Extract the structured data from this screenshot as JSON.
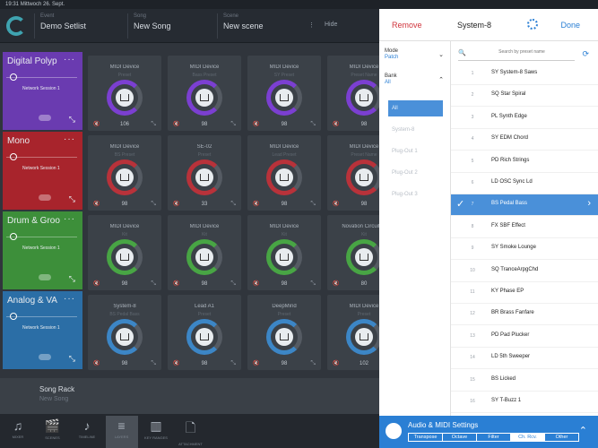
{
  "status": {
    "time": "19:31",
    "date": "Mittwoch 26. Sept."
  },
  "topbar": {
    "fields": [
      {
        "label": "Event",
        "value": "Demo Setlist"
      },
      {
        "label": "Song",
        "value": "New Song"
      },
      {
        "label": "Scene",
        "value": "New scene"
      }
    ],
    "more": "⋮",
    "hide": "Hide"
  },
  "parts": [
    {
      "name": "Digital Polyp",
      "menu": "···",
      "session": "Network Session 1",
      "color": "#6a3bb0"
    },
    {
      "name": "Mono",
      "menu": "···",
      "session": "Network Session 1",
      "color": "#a8242c"
    },
    {
      "name": "Drum & Groo",
      "menu": "···",
      "session": "Network Session 1",
      "color": "#3d8f3a"
    },
    {
      "name": "Analog & VA",
      "menu": "···",
      "session": "Network Session 1",
      "color": "#2b6ea6"
    }
  ],
  "grid": [
    [
      {
        "title": "MIDI Device",
        "sub": "Preset",
        "val": "106",
        "color": "#7b3fd1"
      },
      {
        "title": "MIDI Device",
        "sub": "Bass Preset",
        "val": "98",
        "color": "#7b3fd1"
      },
      {
        "title": "MIDI Device",
        "sub": "SY Preset",
        "val": "98",
        "color": "#7b3fd1"
      },
      {
        "title": "MIDI Device",
        "sub": "Preset Name",
        "val": "98",
        "color": "#7b3fd1"
      }
    ],
    [
      {
        "title": "MIDI Device",
        "sub": "BS Preset",
        "val": "98",
        "color": "#b8323a"
      },
      {
        "title": "SE-02",
        "sub": "Preset",
        "val": "33",
        "color": "#b8323a"
      },
      {
        "title": "MIDI Device",
        "sub": "Lead Preset",
        "val": "98",
        "color": "#b8323a"
      },
      {
        "title": "MIDI Device",
        "sub": "Preset Name",
        "val": "98",
        "color": "#b8323a"
      }
    ],
    [
      {
        "title": "MIDI Device",
        "sub": "Kit",
        "val": "98",
        "color": "#48a544"
      },
      {
        "title": "MIDI Device",
        "sub": "Kit",
        "val": "98",
        "color": "#48a544"
      },
      {
        "title": "MIDI Device",
        "sub": "Kit",
        "val": "98",
        "color": "#48a544"
      },
      {
        "title": "Novation Circuit Tr",
        "sub": "Kit",
        "val": "80",
        "color": "#48a544"
      }
    ],
    [
      {
        "title": "System-8",
        "sub": "BS Pedal Bass",
        "val": "98",
        "color": "#3c86c6"
      },
      {
        "title": "Lead A1",
        "sub": "Preset",
        "val": "98",
        "color": "#3c86c6"
      },
      {
        "title": "DeepMind",
        "sub": "Preset",
        "val": "98",
        "color": "#3c86c6"
      },
      {
        "title": "MIDI Device",
        "sub": "Preset",
        "val": "102",
        "color": "#3c86c6"
      }
    ]
  ],
  "song_rack": {
    "title": "Song Rack",
    "sub": "New Song"
  },
  "bottom_bar": [
    {
      "icon": "♫",
      "label": "MIXER",
      "name": "mixer"
    },
    {
      "icon": "🎬",
      "label": "SCENES",
      "name": "scenes"
    },
    {
      "icon": "♪",
      "label": "TIMELINE",
      "name": "timeline"
    },
    {
      "icon": "≡",
      "label": "LAYERS",
      "name": "layers"
    },
    {
      "icon": "▥",
      "label": "KEY RANGES",
      "name": "key-ranges"
    },
    {
      "icon": "🗋",
      "label": "ATTACHMENT",
      "name": "attachment"
    }
  ],
  "panel": {
    "remove": "Remove",
    "title": "System-8",
    "done": "Done",
    "mode": {
      "label": "Mode",
      "value": "Patch"
    },
    "bank": {
      "label": "Bank",
      "value": "All"
    },
    "banks": [
      "All",
      "System-8",
      "Plug-Out 1",
      "Plug-Out 2",
      "Plug-Out 3"
    ],
    "search_placeholder": "Search by preset name",
    "presets": [
      {
        "num": "1",
        "name": "SY System-8 Saws"
      },
      {
        "num": "2",
        "name": "SQ Star Spiral"
      },
      {
        "num": "3",
        "name": "PL Synth Edge"
      },
      {
        "num": "4",
        "name": "SY EDM Chord"
      },
      {
        "num": "5",
        "name": "PD Rich Strings"
      },
      {
        "num": "6",
        "name": "LD OSC Sync Ld"
      },
      {
        "num": "7",
        "name": "BS Pedal Bass"
      },
      {
        "num": "8",
        "name": "FX SBF Effect"
      },
      {
        "num": "9",
        "name": "SY Smoke Lounge"
      },
      {
        "num": "10",
        "name": "SQ TranceArpgChd"
      },
      {
        "num": "11",
        "name": "KY Phase EP"
      },
      {
        "num": "12",
        "name": "BR Brass Fanfare"
      },
      {
        "num": "13",
        "name": "PD Pad Plucker"
      },
      {
        "num": "14",
        "name": "LD 5th Sweeper"
      },
      {
        "num": "15",
        "name": "BS Licked"
      },
      {
        "num": "16",
        "name": "SY T-Buzz 1"
      }
    ],
    "audio_midi": {
      "title": "Audio & MIDI Settings",
      "tabs": [
        "Transpose",
        "Octave",
        "Filter",
        "Ch. Rcv.",
        "Other"
      ],
      "active_tab": 3
    }
  }
}
